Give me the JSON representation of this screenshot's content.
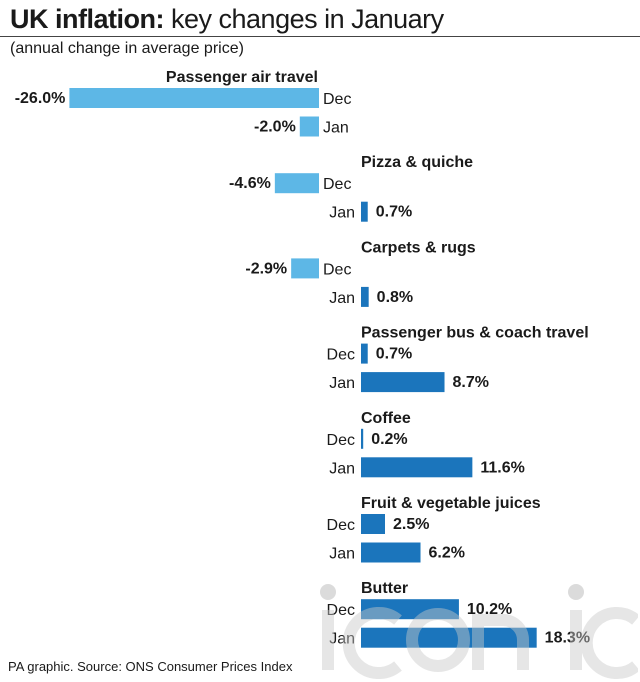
{
  "title_bold": "UK inflation:",
  "title_rest": "key changes in January",
  "subtitle": "(annual change in average price)",
  "source": "PA graphic. Source: ONS Consumer Prices Index",
  "colors": {
    "negative": "#5db7e6",
    "positive": "#1b75bc",
    "text": "#1a1a1a"
  },
  "chart_data": {
    "type": "bar",
    "orientation": "horizontal",
    "unit": "%",
    "period_labels": [
      "Dec",
      "Jan"
    ],
    "categories": [
      "Passenger air travel",
      "Pizza & quiche",
      "Carpets & rugs",
      "Passenger bus & coach travel",
      "Coffee",
      "Fruit & vegetable juices",
      "Butter"
    ],
    "series": [
      {
        "name": "Dec",
        "values": [
          -26.0,
          -4.6,
          -2.9,
          0.7,
          0.2,
          2.5,
          10.2
        ]
      },
      {
        "name": "Jan",
        "values": [
          -2.0,
          0.7,
          0.8,
          8.7,
          11.6,
          6.2,
          18.3
        ]
      }
    ],
    "value_labels": [
      [
        "-26.0%",
        "-2.0%"
      ],
      [
        "-4.6%",
        "0.7%"
      ],
      [
        "-2.9%",
        "0.8%"
      ],
      [
        "0.7%",
        "8.7%"
      ],
      [
        "0.2%",
        "11.6%"
      ],
      [
        "2.5%",
        "6.2%"
      ],
      [
        "10.2%",
        "18.3%"
      ]
    ]
  }
}
